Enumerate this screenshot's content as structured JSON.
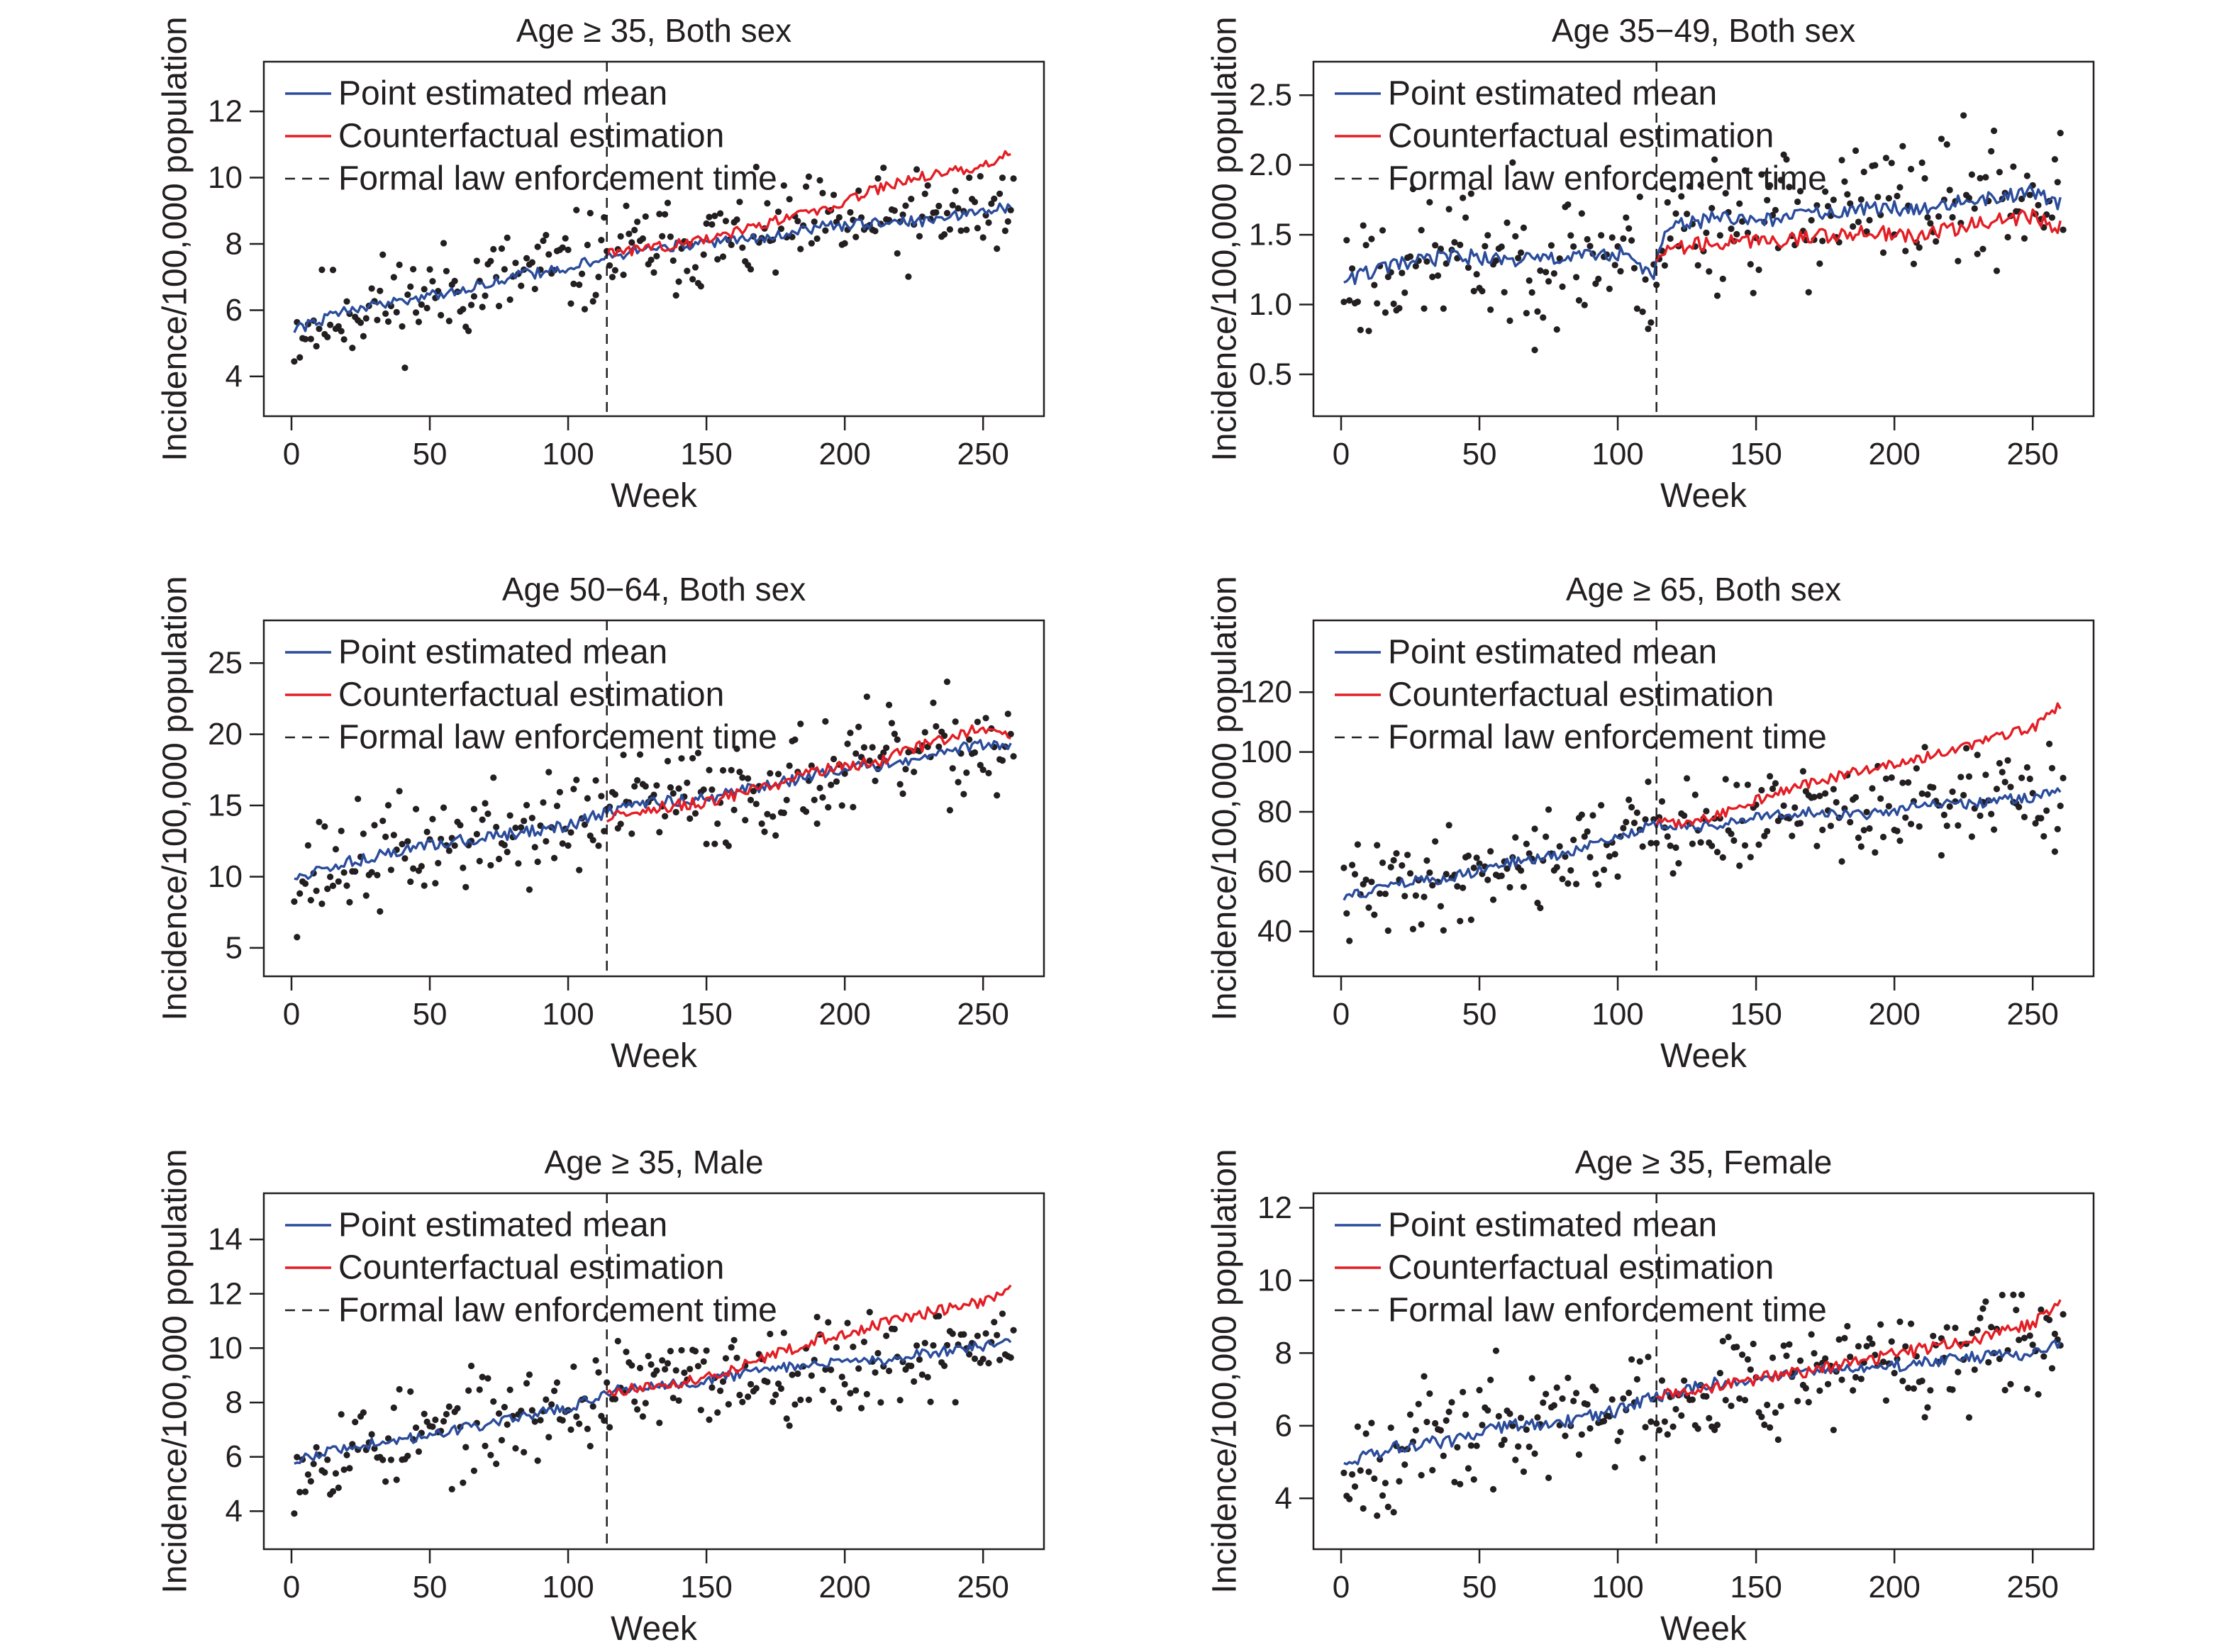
{
  "chart_data": [
    {
      "type": "line",
      "title": "Age ≥ 35, Both sex",
      "xlabel": "Week",
      "ylabel": "Incidence/100,000 population",
      "xlim": [
        -10,
        272
      ],
      "ylim": [
        2.8,
        13.5
      ],
      "xticks": [
        0,
        50,
        100,
        150,
        200,
        250
      ],
      "yticks": [
        4,
        6,
        8,
        10,
        12
      ],
      "intervention_week": 114,
      "legend_position": "top-left",
      "legend": [
        "Point estimated mean",
        "Counterfactual estimation",
        "Formal law enforcement time"
      ],
      "series": [
        {
          "name": "Point estimated mean",
          "color": "#2b4c9b",
          "x": [
            1,
            20,
            40,
            60,
            80,
            100,
            114,
            130,
            150,
            170,
            190,
            210,
            230,
            250,
            260
          ],
          "y": [
            5.4,
            6.0,
            6.3,
            6.6,
            7.0,
            7.3,
            7.6,
            7.9,
            8.0,
            8.2,
            8.5,
            8.6,
            8.7,
            9.0,
            9.1
          ]
        },
        {
          "name": "Counterfactual estimation",
          "color": "#e31e24",
          "x": [
            114,
            130,
            150,
            170,
            190,
            210,
            230,
            250,
            260
          ],
          "y": [
            7.7,
            7.9,
            8.1,
            8.6,
            9.0,
            9.6,
            10.1,
            10.3,
            10.8
          ]
        }
      ],
      "observed_points": {
        "color": "#231f20",
        "noise": 0.75,
        "seed": 11
      }
    },
    {
      "type": "line",
      "title": "Age 35−49, Both sex",
      "xlabel": "Week",
      "ylabel": "Incidence/100,000 population",
      "xlim": [
        -10,
        272
      ],
      "ylim": [
        0.2,
        2.74
      ],
      "xticks": [
        0,
        50,
        100,
        150,
        200,
        250
      ],
      "yticks": [
        0.5,
        1.0,
        1.5,
        2.0,
        2.5
      ],
      "ytick_labels": [
        "0.5",
        "1.0",
        "1.5",
        "2.0",
        "2.5"
      ],
      "intervention_week": 114,
      "legend_position": "top-left",
      "legend": [
        "Point estimated mean",
        "Counterfactual estimation",
        "Formal law enforcement time"
      ],
      "series": [
        {
          "name": "Point estimated mean",
          "color": "#2b4c9b",
          "x": [
            1,
            20,
            40,
            60,
            80,
            100,
            113,
            118,
            135,
            150,
            170,
            190,
            210,
            230,
            250,
            260
          ],
          "y": [
            1.18,
            1.28,
            1.35,
            1.32,
            1.33,
            1.37,
            1.22,
            1.55,
            1.62,
            1.6,
            1.65,
            1.68,
            1.7,
            1.75,
            1.8,
            1.72
          ]
        },
        {
          "name": "Counterfactual estimation",
          "color": "#e31e24",
          "x": [
            114,
            118,
            135,
            150,
            170,
            190,
            210,
            230,
            250,
            260
          ],
          "y": [
            1.33,
            1.4,
            1.45,
            1.45,
            1.48,
            1.52,
            1.5,
            1.58,
            1.63,
            1.55
          ]
        }
      ],
      "observed_points": {
        "color": "#231f20",
        "noise": 0.25,
        "seed": 23
      }
    },
    {
      "type": "line",
      "title": "Age 50−64, Both sex",
      "xlabel": "Week",
      "ylabel": "Incidence/100,000 population",
      "xlim": [
        -10,
        272
      ],
      "ylim": [
        3,
        28
      ],
      "xticks": [
        0,
        50,
        100,
        150,
        200,
        250
      ],
      "yticks": [
        5,
        10,
        15,
        20,
        25
      ],
      "intervention_week": 114,
      "legend_position": "top-left",
      "legend": [
        "Point estimated mean",
        "Counterfactual estimation",
        "Formal law enforcement time"
      ],
      "series": [
        {
          "name": "Point estimated mean",
          "color": "#2b4c9b",
          "x": [
            1,
            20,
            40,
            60,
            80,
            100,
            114,
            130,
            150,
            170,
            190,
            210,
            230,
            250,
            260
          ],
          "y": [
            10,
            11,
            11.8,
            12.5,
            13.0,
            13.6,
            14.5,
            15.2,
            15.5,
            16.3,
            17.2,
            17.8,
            18.5,
            19.3,
            19.0
          ]
        },
        {
          "name": "Counterfactual estimation",
          "color": "#e31e24",
          "x": [
            114,
            130,
            150,
            170,
            190,
            210,
            230,
            250,
            260
          ],
          "y": [
            14.0,
            14.8,
            15.2,
            16.2,
            17.4,
            18.0,
            19.3,
            20.5,
            20.0
          ]
        }
      ],
      "observed_points": {
        "color": "#231f20",
        "noise": 1.9,
        "seed": 37
      }
    },
    {
      "type": "line",
      "title": "Age ≥ 65, Both sex",
      "xlabel": "Week",
      "ylabel": "Incidence/100,000 population",
      "xlim": [
        -10,
        272
      ],
      "ylim": [
        25,
        144
      ],
      "xticks": [
        0,
        50,
        100,
        150,
        200,
        250
      ],
      "yticks": [
        40,
        60,
        80,
        100,
        120
      ],
      "intervention_week": 114,
      "legend_position": "top-left",
      "legend": [
        "Point estimated mean",
        "Counterfactual estimation",
        "Formal law enforcement time"
      ],
      "series": [
        {
          "name": "Point estimated mean",
          "color": "#2b4c9b",
          "x": [
            1,
            20,
            40,
            60,
            80,
            100,
            114,
            130,
            150,
            170,
            190,
            210,
            230,
            250,
            260
          ],
          "y": [
            51,
            56,
            58,
            63,
            66,
            71,
            76,
            75,
            78,
            80,
            79,
            82,
            83,
            85,
            88
          ]
        },
        {
          "name": "Counterfactual estimation",
          "color": "#e31e24",
          "x": [
            114,
            130,
            150,
            170,
            190,
            210,
            230,
            250,
            260
          ],
          "y": [
            76,
            77,
            84,
            90,
            94,
            98,
            103,
            108,
            116
          ]
        }
      ],
      "observed_points": {
        "color": "#231f20",
        "noise": 8.0,
        "seed": 41
      }
    },
    {
      "type": "line",
      "title": "Age ≥ 35, Male",
      "xlabel": "Week",
      "ylabel": "Incidence/100,000 population",
      "xlim": [
        -10,
        272
      ],
      "ylim": [
        2.6,
        15.7
      ],
      "xticks": [
        0,
        50,
        100,
        150,
        200,
        250
      ],
      "yticks": [
        4,
        6,
        8,
        10,
        12,
        14
      ],
      "intervention_week": 114,
      "legend_position": "top-left",
      "legend": [
        "Point estimated mean",
        "Counterfactual estimation",
        "Formal law enforcement time"
      ],
      "series": [
        {
          "name": "Point estimated mean",
          "color": "#2b4c9b",
          "x": [
            1,
            20,
            40,
            60,
            80,
            100,
            114,
            130,
            150,
            170,
            190,
            210,
            230,
            250,
            260
          ],
          "y": [
            5.8,
            6.4,
            6.6,
            7.0,
            7.4,
            7.8,
            8.4,
            8.6,
            8.8,
            9.2,
            9.4,
            9.5,
            9.8,
            10.1,
            10.2
          ]
        },
        {
          "name": "Counterfactual estimation",
          "color": "#e31e24",
          "x": [
            114,
            130,
            150,
            170,
            190,
            210,
            230,
            250,
            260
          ],
          "y": [
            8.4,
            8.6,
            8.9,
            9.6,
            10.3,
            10.8,
            11.3,
            11.7,
            12.2
          ]
        }
      ],
      "observed_points": {
        "color": "#231f20",
        "noise": 0.9,
        "seed": 53
      }
    },
    {
      "type": "line",
      "title": "Age ≥ 35, Female",
      "xlabel": "Week",
      "ylabel": "Incidence/100,000 population",
      "xlim": [
        -10,
        272
      ],
      "ylim": [
        2.6,
        12.4
      ],
      "xticks": [
        0,
        50,
        100,
        150,
        200,
        250
      ],
      "yticks": [
        4,
        6,
        8,
        10,
        12
      ],
      "intervention_week": 114,
      "legend_position": "top-left",
      "legend": [
        "Point estimated mean",
        "Counterfactual estimation",
        "Formal law enforcement time"
      ],
      "series": [
        {
          "name": "Point estimated mean",
          "color": "#2b4c9b",
          "x": [
            1,
            20,
            40,
            60,
            80,
            100,
            114,
            130,
            150,
            170,
            190,
            210,
            230,
            250,
            260
          ],
          "y": [
            5.0,
            5.4,
            5.6,
            6.0,
            6.1,
            6.4,
            6.8,
            7.1,
            7.3,
            7.5,
            7.6,
            7.7,
            7.9,
            8.0,
            8.3
          ]
        },
        {
          "name": "Counterfactual estimation",
          "color": "#e31e24",
          "x": [
            114,
            130,
            150,
            170,
            190,
            210,
            230,
            250,
            260
          ],
          "y": [
            6.8,
            7.0,
            7.3,
            7.5,
            7.8,
            8.1,
            8.4,
            8.8,
            9.3
          ]
        }
      ],
      "observed_points": {
        "color": "#231f20",
        "noise": 0.8,
        "seed": 67
      }
    }
  ]
}
